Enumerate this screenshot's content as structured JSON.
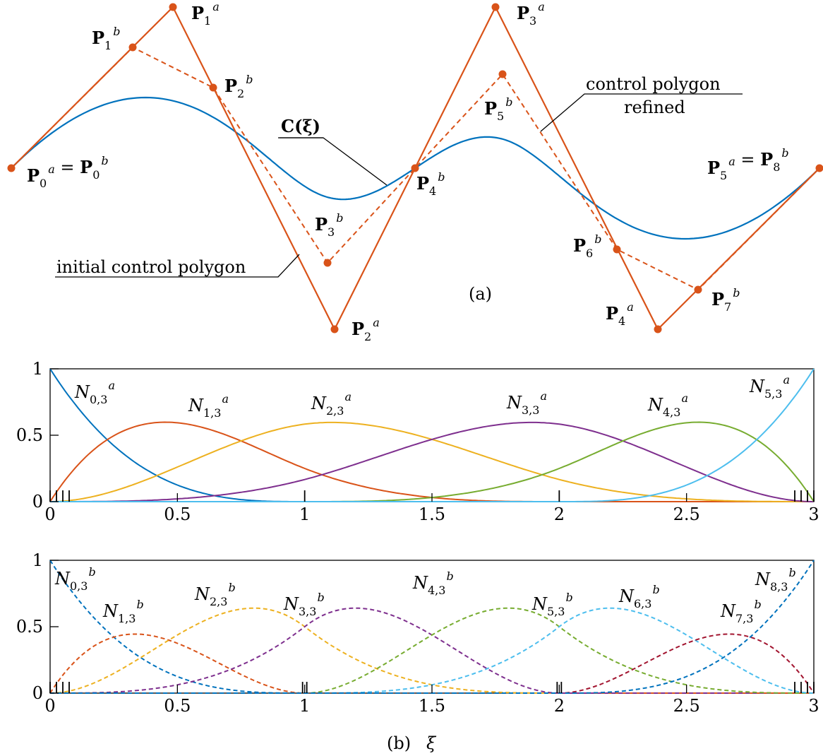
{
  "panel_a": {
    "caption": "(a)",
    "colors": {
      "polygon": "#d95319",
      "curve": "#0072bd"
    },
    "curve_label": "C(ξ)",
    "annotations": {
      "control_polygon_refined_line1": "control polygon",
      "control_polygon_refined_line2": "refined",
      "initial_control_polygon": "initial control polygon"
    },
    "point_labels": [
      {
        "id": "p0",
        "text": "P0a = P0b",
        "parts": [
          [
            "P",
            "0",
            "a"
          ],
          [
            "P",
            "0",
            "b"
          ]
        ]
      },
      {
        "id": "p1a",
        "parts": [
          [
            "P",
            "1",
            "a"
          ]
        ]
      },
      {
        "id": "p1b",
        "parts": [
          [
            "P",
            "1",
            "b"
          ]
        ]
      },
      {
        "id": "p2b",
        "parts": [
          [
            "P",
            "2",
            "b"
          ]
        ]
      },
      {
        "id": "p3a",
        "parts": [
          [
            "P",
            "3",
            "a"
          ]
        ]
      },
      {
        "id": "p5b",
        "parts": [
          [
            "P",
            "5",
            "b"
          ]
        ]
      },
      {
        "id": "p4b",
        "parts": [
          [
            "P",
            "4",
            "b"
          ]
        ]
      },
      {
        "id": "p3b",
        "parts": [
          [
            "P",
            "3",
            "b"
          ]
        ]
      },
      {
        "id": "p2a",
        "parts": [
          [
            "P",
            "2",
            "a"
          ]
        ]
      },
      {
        "id": "p6b",
        "parts": [
          [
            "P",
            "6",
            "b"
          ]
        ]
      },
      {
        "id": "p7b",
        "parts": [
          [
            "P",
            "7",
            "b"
          ]
        ]
      },
      {
        "id": "p4a",
        "parts": [
          [
            "P",
            "4",
            "a"
          ]
        ]
      },
      {
        "id": "p5a",
        "parts": [
          [
            "P",
            "5",
            "a"
          ],
          [
            "P",
            "8",
            "b"
          ]
        ]
      }
    ]
  },
  "chart_data": [
    {
      "type": "line",
      "degree": 3,
      "knots": [
        0,
        0,
        0,
        0,
        1,
        2,
        3,
        3,
        3,
        3
      ],
      "xlim": [
        0,
        3
      ],
      "ylim": [
        0,
        1
      ],
      "xticks": [
        "0",
        "0.5",
        "1",
        "1.5",
        "2",
        "2.5",
        "3"
      ],
      "yticks": [
        "0",
        "0.5",
        "1"
      ],
      "line_style": "solid",
      "series": [
        {
          "name": "N0,3a",
          "base": "N",
          "sub": "0,3",
          "sup": "a",
          "color": "#0072bd"
        },
        {
          "name": "N1,3a",
          "base": "N",
          "sub": "1,3",
          "sup": "a",
          "color": "#d95319"
        },
        {
          "name": "N2,3a",
          "base": "N",
          "sub": "2,3",
          "sup": "a",
          "color": "#edb120"
        },
        {
          "name": "N3,3a",
          "base": "N",
          "sub": "3,3",
          "sup": "a",
          "color": "#7e2f8e"
        },
        {
          "name": "N4,3a",
          "base": "N",
          "sub": "4,3",
          "sup": "a",
          "color": "#77ac30"
        },
        {
          "name": "N5,3a",
          "base": "N",
          "sub": "5,3",
          "sup": "a",
          "color": "#4dbeee"
        }
      ]
    },
    {
      "type": "line",
      "degree": 3,
      "knots": [
        0,
        0,
        0,
        0,
        1,
        1,
        2,
        2,
        3,
        3,
        3,
        3
      ],
      "xlim": [
        0,
        3
      ],
      "ylim": [
        0,
        1
      ],
      "xticks": [
        "0",
        "0.5",
        "1",
        "1.5",
        "2",
        "2.5",
        "3"
      ],
      "yticks": [
        "0",
        "0.5",
        "1"
      ],
      "xlabel": "ξ",
      "caption": "(b)",
      "line_style": "dashed",
      "series": [
        {
          "name": "N0,3b",
          "base": "N",
          "sub": "0,3",
          "sup": "b",
          "color": "#0072bd"
        },
        {
          "name": "N1,3b",
          "base": "N",
          "sub": "1,3",
          "sup": "b",
          "color": "#d95319"
        },
        {
          "name": "N2,3b",
          "base": "N",
          "sub": "2,3",
          "sup": "b",
          "color": "#edb120"
        },
        {
          "name": "N3,3b",
          "base": "N",
          "sub": "3,3",
          "sup": "b",
          "color": "#7e2f8e"
        },
        {
          "name": "N4,3b",
          "base": "N",
          "sub": "4,3",
          "sup": "b",
          "color": "#77ac30"
        },
        {
          "name": "N5,3b",
          "base": "N",
          "sub": "5,3",
          "sup": "b",
          "color": "#4dbeee"
        },
        {
          "name": "N6,3b",
          "base": "N",
          "sub": "6,3",
          "sup": "b",
          "color": "#a2142f"
        },
        {
          "name": "N7,3b",
          "base": "N",
          "sub": "7,3",
          "sup": "b",
          "color": "#0072bd"
        },
        {
          "name": "N8,3b",
          "base": "N",
          "sub": "8,3",
          "sup": "b",
          "color": "#d95319"
        }
      ]
    }
  ]
}
